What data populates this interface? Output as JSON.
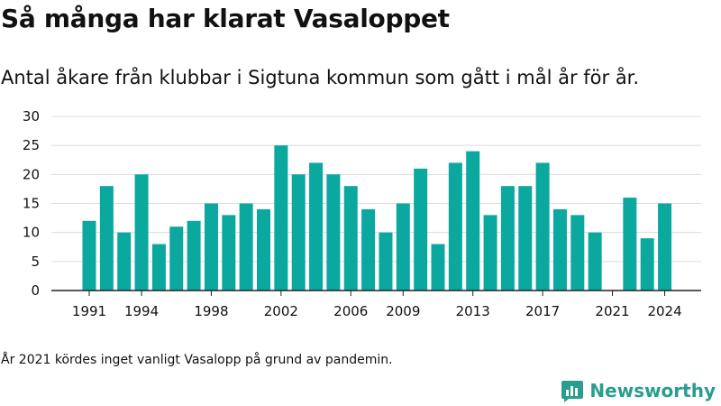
{
  "title": "Så många har klarat Vasaloppet",
  "subtitle": "Antal åkare från klubbar i Sigtuna kommun som gått i mål år för år.",
  "footnote": "År 2021 kördes inget vanligt Vasalopp på grund av pandemin.",
  "brand": {
    "name": "Newsworthy",
    "icon": "newsworthy-logo-icon",
    "color": "#2a9d8f"
  },
  "chart_data": {
    "type": "bar",
    "x": [
      1991,
      1992,
      1993,
      1994,
      1995,
      1996,
      1997,
      1998,
      1999,
      2000,
      2001,
      2002,
      2003,
      2004,
      2005,
      2006,
      2007,
      2008,
      2009,
      2010,
      2011,
      2012,
      2013,
      2014,
      2015,
      2016,
      2017,
      2018,
      2019,
      2020,
      2021,
      2022,
      2023,
      2024
    ],
    "values": [
      12,
      18,
      10,
      20,
      8,
      11,
      12,
      15,
      13,
      15,
      14,
      25,
      20,
      22,
      20,
      18,
      14,
      10,
      15,
      21,
      8,
      22,
      24,
      13,
      18,
      18,
      22,
      14,
      13,
      10,
      0,
      16,
      9,
      15
    ],
    "x_tick_labels": [
      "1991",
      "1994",
      "1998",
      "2002",
      "2006",
      "2009",
      "2013",
      "2017",
      "2021",
      "2024"
    ],
    "y_ticks": [
      0,
      5,
      10,
      15,
      20,
      25,
      30
    ],
    "ylim": [
      0,
      30
    ],
    "bar_color": "#0aa89e",
    "grid": true,
    "title": "Så många har klarat Vasaloppet",
    "subtitle": "Antal åkare från klubbar i Sigtuna kommun som gått i mål år för år."
  }
}
